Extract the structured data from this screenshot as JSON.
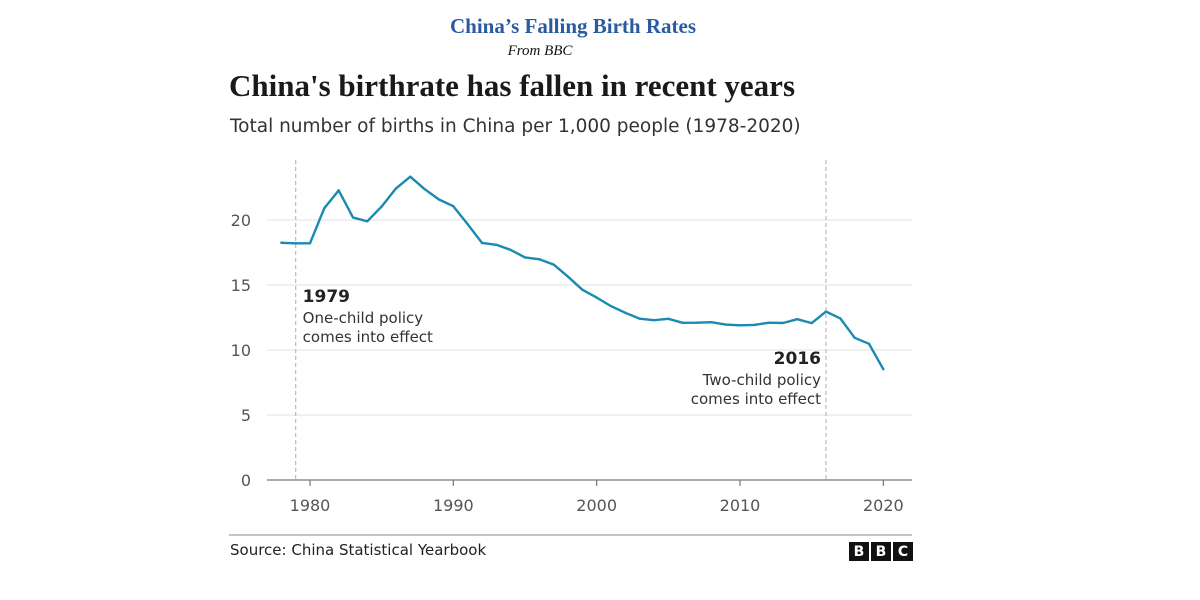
{
  "header": {
    "title": "China’s Falling Birth Rates",
    "source_line": "From BBC"
  },
  "chart_data": {
    "type": "line",
    "title": "China's birthrate has fallen in recent years",
    "subtitle": "Total number of births in China per 1,000 people (1978-2020)",
    "xlabel": "",
    "ylabel": "",
    "xlim": [
      1977,
      2022
    ],
    "ylim": [
      0,
      25
    ],
    "x_ticks": [
      1980,
      1990,
      2000,
      2010,
      2020
    ],
    "y_ticks": [
      0,
      5,
      10,
      15,
      20
    ],
    "grid": "horizontal",
    "line_color": "#1a8bb0",
    "series": [
      {
        "name": "Births per 1,000 people",
        "x": [
          1978,
          1979,
          1980,
          1981,
          1982,
          1983,
          1984,
          1985,
          1986,
          1987,
          1988,
          1989,
          1990,
          1991,
          1992,
          1993,
          1994,
          1995,
          1996,
          1997,
          1998,
          1999,
          2000,
          2001,
          2002,
          2003,
          2004,
          2005,
          2006,
          2007,
          2008,
          2009,
          2010,
          2011,
          2012,
          2013,
          2014,
          2015,
          2016,
          2017,
          2018,
          2019,
          2020
        ],
        "values": [
          18.25,
          18.21,
          18.21,
          20.91,
          22.28,
          20.19,
          19.9,
          21.04,
          22.43,
          23.33,
          22.37,
          21.58,
          21.06,
          19.68,
          18.24,
          18.09,
          17.7,
          17.12,
          16.98,
          16.57,
          15.64,
          14.64,
          14.03,
          13.38,
          12.86,
          12.41,
          12.29,
          12.4,
          12.09,
          12.1,
          12.14,
          11.95,
          11.9,
          11.93,
          12.1,
          12.08,
          12.37,
          12.07,
          12.95,
          12.43,
          10.94,
          10.48,
          8.52
        ]
      }
    ],
    "annotations": [
      {
        "x": 1979,
        "year_label": "1979",
        "lines": [
          "One-child policy",
          "comes into effect"
        ],
        "align": "left"
      },
      {
        "x": 2016,
        "year_label": "2016",
        "lines": [
          "Two-child policy",
          "comes into effect"
        ],
        "align": "right"
      }
    ],
    "source": "Source: China Statistical Yearbook"
  },
  "logo": {
    "letters": [
      "B",
      "B",
      "C"
    ]
  }
}
